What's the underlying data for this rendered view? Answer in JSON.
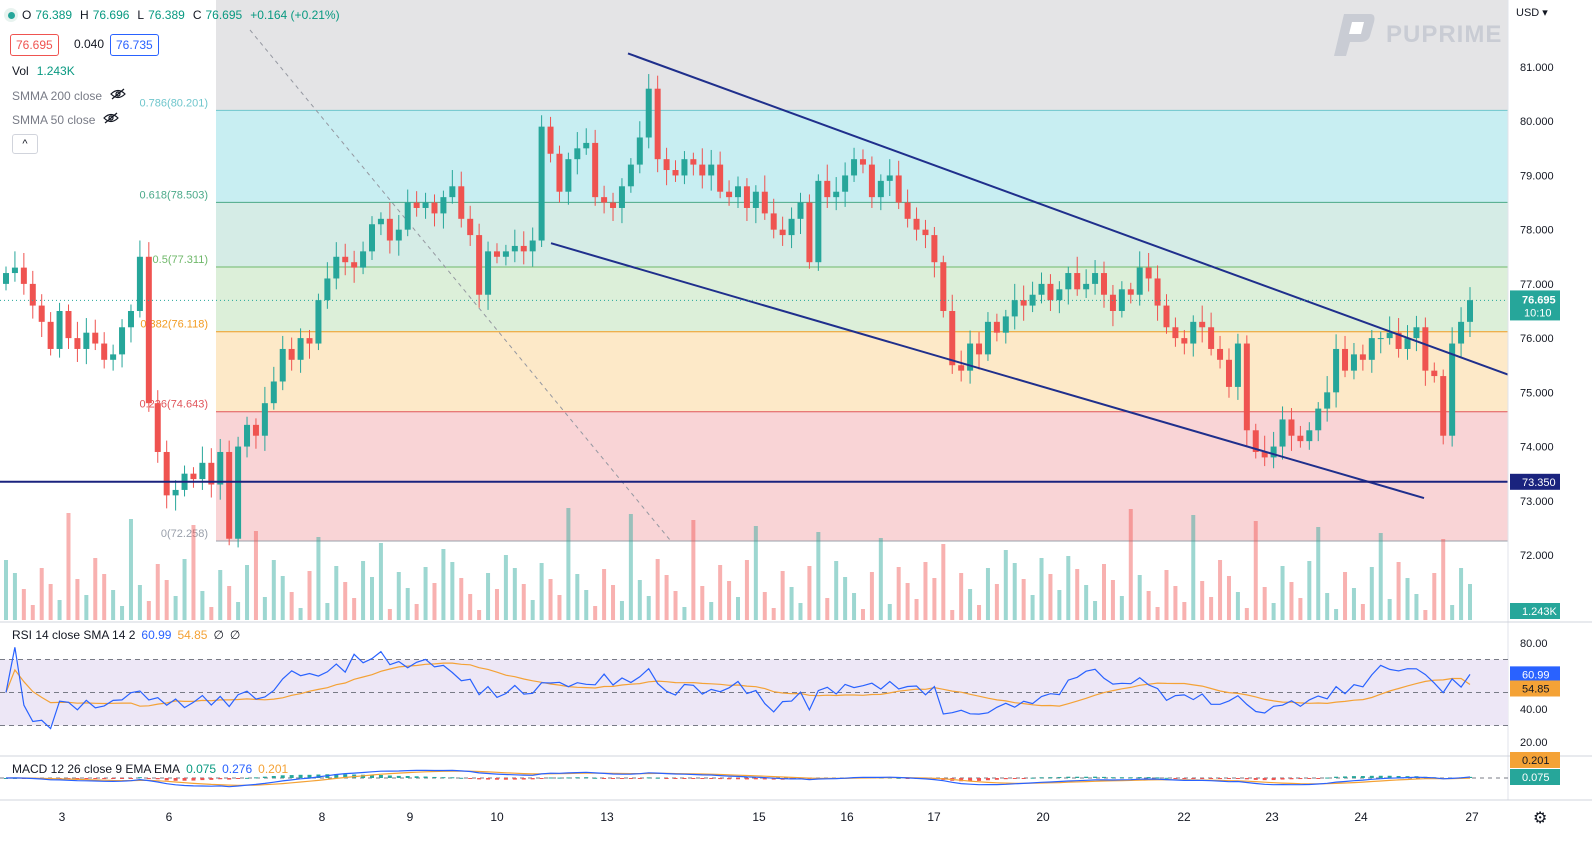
{
  "header": {
    "open_label": "O",
    "open": "76.389",
    "high_label": "H",
    "high": "76.696",
    "low_label": "L",
    "low": "76.389",
    "close_label": "C",
    "close": "76.695",
    "change": "+0.164 (+0.21%)",
    "bid": "76.695",
    "spread": "0.040",
    "ask": "76.735",
    "volume_label": "Vol",
    "volume": "1.243K",
    "smma200": "SMMA 200 close",
    "smma50": "SMMA 50 close",
    "collapse": "^"
  },
  "logo_text": "PUPRIME",
  "currency": "USD",
  "colors": {
    "up": "#26a69a",
    "down": "#ef5350",
    "channel": "#1f2f8c",
    "rsi": "#2962ff",
    "signal": "#f4a236"
  },
  "chart_data": [
    {
      "type": "candlestick",
      "x_ticks": [
        "3",
        "6",
        "8",
        "9",
        "10",
        "13",
        "15",
        "16",
        "17",
        "20",
        "22",
        "23",
        "24",
        "27"
      ],
      "y_ticks": [
        "81.000",
        "80.000",
        "79.000",
        "78.000",
        "77.000",
        "76.000",
        "75.000",
        "74.000",
        "73.000",
        "72.000"
      ],
      "fibonacci": [
        {
          "label": "0.786(80.201)",
          "value": 80.201
        },
        {
          "label": "0.618(78.503)",
          "value": 78.503
        },
        {
          "label": "0.5(77.311)",
          "value": 77.311
        },
        {
          "label": "0.382(76.118)",
          "value": 76.118
        },
        {
          "label": "0.236(74.643)",
          "value": 74.643
        },
        {
          "label": "0(72.258)",
          "value": 72.258
        }
      ],
      "horizontal_line": {
        "value": 73.35,
        "label": "73.350"
      },
      "last_price": {
        "value": 76.695,
        "label": "76.695",
        "countdown": "10:10"
      },
      "volume_label": "1.243K",
      "channel_upper": [
        {
          "x": "13",
          "y": 81.25
        },
        {
          "x": "24",
          "y": 75.9
        },
        {
          "x": "27",
          "y": 75.3
        }
      ],
      "channel_lower": [
        {
          "x": "10",
          "y": 77.75
        },
        {
          "x": "23",
          "y": 73.85
        },
        {
          "x": "27",
          "y": 73.05
        }
      ],
      "closes": [
        77.2,
        77.3,
        77.0,
        76.6,
        76.3,
        75.8,
        76.5,
        76.0,
        75.8,
        76.1,
        75.9,
        75.6,
        75.7,
        76.2,
        76.5,
        77.5,
        74.8,
        73.9,
        73.1,
        73.2,
        73.5,
        73.4,
        73.7,
        73.3,
        73.9,
        72.3,
        74.0,
        74.4,
        74.2,
        74.8,
        75.2,
        75.8,
        75.6,
        76.0,
        75.9,
        76.7,
        77.1,
        77.5,
        77.4,
        77.3,
        77.6,
        78.1,
        78.2,
        77.8,
        78.0,
        78.5,
        78.4,
        78.5,
        78.3,
        78.6,
        78.8,
        78.2,
        77.9,
        76.8,
        77.6,
        77.5,
        77.6,
        77.7,
        77.6,
        77.8,
        79.9,
        79.4,
        78.7,
        79.3,
        79.5,
        79.6,
        78.6,
        78.5,
        78.4,
        78.8,
        79.2,
        79.7,
        80.6,
        79.3,
        79.1,
        79.0,
        79.3,
        79.2,
        79.0,
        79.2,
        78.7,
        78.6,
        78.8,
        78.4,
        78.7,
        78.3,
        78.0,
        77.9,
        78.2,
        78.5,
        77.4,
        78.9,
        78.6,
        78.7,
        79.0,
        79.3,
        79.2,
        78.6,
        78.9,
        79.0,
        78.5,
        78.2,
        78.0,
        77.9,
        77.4,
        76.5,
        75.5,
        75.4,
        75.9,
        75.7,
        76.3,
        76.1,
        76.4,
        76.7,
        76.6,
        76.8,
        77.0,
        76.7,
        76.9,
        77.2,
        76.9,
        77.0,
        77.2,
        76.8,
        76.5,
        76.9,
        76.8,
        77.3,
        77.1,
        76.6,
        76.2,
        76.0,
        75.9,
        76.3,
        76.2,
        75.8,
        75.6,
        75.1,
        75.9,
        74.3,
        73.9,
        73.8,
        74.0,
        74.5,
        74.2,
        74.1,
        74.3,
        74.7,
        75.0,
        75.8,
        75.4,
        75.7,
        75.6,
        76.0,
        76.0,
        76.1,
        75.8,
        76.0,
        76.2,
        75.4,
        75.3,
        74.2,
        75.9,
        76.3,
        76.7
      ]
    },
    {
      "type": "line",
      "name": "RSI 14 close SMA 14 2",
      "legend_values": [
        "60.99",
        "54.85",
        "∅",
        "∅"
      ],
      "y_ticks": [
        "80.00",
        "60.00",
        "40.00",
        "20.00"
      ],
      "last": "60.99",
      "sma_last": "54.85"
    },
    {
      "type": "histogram",
      "name": "MACD 12 26 close 9 EMA EMA",
      "legend_values": [
        "0.075",
        "0.276",
        "0.201"
      ],
      "last_signal": "0.201",
      "last_macd": "0.075"
    }
  ]
}
